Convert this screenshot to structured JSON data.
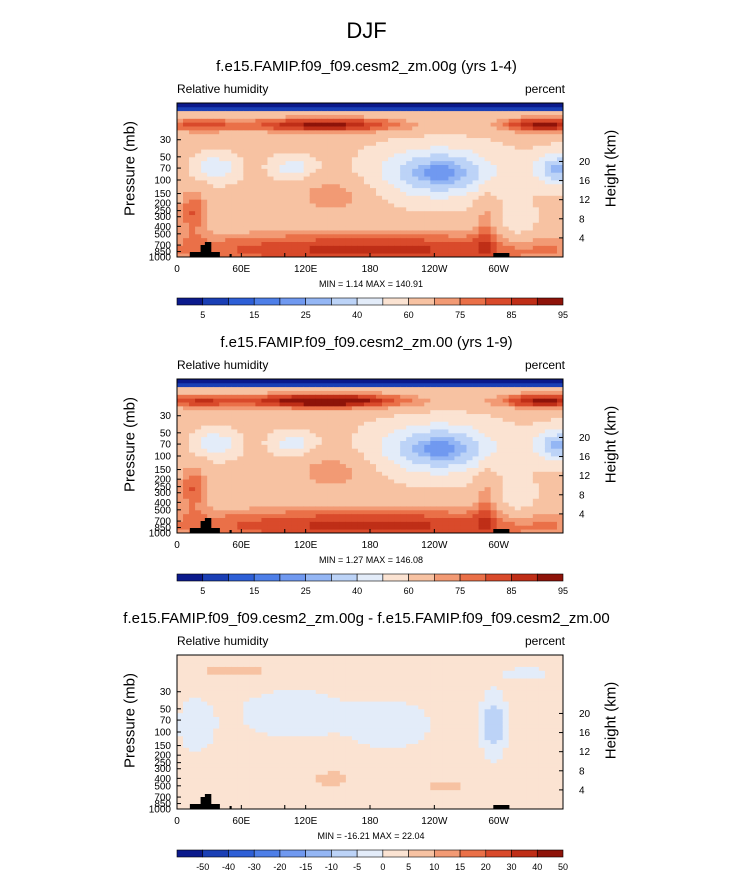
{
  "figure": {
    "title": "DJF"
  },
  "colors": {
    "rh_fills": [
      "#0b1a8c",
      "#1a3fb5",
      "#2e5fd6",
      "#4e7fe8",
      "#7099f0",
      "#94b6f4",
      "#bcd3f7",
      "#e3ecf9",
      "#fbe3d2",
      "#f7c2a2",
      "#f29a74",
      "#ea7048",
      "#d94a2b",
      "#bf2e17",
      "#8e1309"
    ],
    "diff_fills": [
      "#0b1a8c",
      "#1a3fb5",
      "#2e5fd6",
      "#4e7fe8",
      "#7099f0",
      "#94b6f4",
      "#bcd3f7",
      "#e3ecf9",
      "#fbe3d2",
      "#f7c2a2",
      "#f29a74",
      "#ea7048",
      "#d94a2b",
      "#bf2e17",
      "#8e1309"
    ],
    "terrain": "#000000"
  },
  "chart_data": [
    {
      "type": "heatmap",
      "title": "f.e15.FAMIP.f09_f09.cesm2_zm.00g (yrs 1-4)",
      "left_label": "Relative humidity",
      "right_label": "percent",
      "ylabel": "Pressure (mb)",
      "ylabel_right": "Height (km)",
      "minmax": "MIN =   1.14  MAX = 140.91",
      "x_ticks": [
        "0",
        "60E",
        "120E",
        "180",
        "120W",
        "60W"
      ],
      "y_ticks": [
        "1000",
        "850",
        "700",
        "500",
        "400",
        "300",
        "250",
        "200",
        "150",
        "100",
        "70",
        "50",
        "30"
      ],
      "height_ticks": [
        "4",
        "8",
        "12",
        "16",
        "20"
      ],
      "colorbar_labels": [
        "5",
        "15",
        "25",
        "40",
        "60",
        "75",
        "85",
        "95"
      ],
      "colorbar_levels": [
        5,
        10,
        15,
        20,
        25,
        30,
        40,
        50,
        60,
        70,
        75,
        80,
        85,
        90,
        95
      ]
    },
    {
      "type": "heatmap",
      "title": "f.e15.FAMIP.f09_f09.cesm2_zm.00 (yrs 1-9)",
      "left_label": "Relative humidity",
      "right_label": "percent",
      "ylabel": "Pressure (mb)",
      "ylabel_right": "Height (km)",
      "minmax": "MIN =   1.27  MAX = 146.08",
      "x_ticks": [
        "0",
        "60E",
        "120E",
        "180",
        "120W",
        "60W"
      ],
      "y_ticks": [
        "1000",
        "850",
        "700",
        "500",
        "400",
        "300",
        "250",
        "200",
        "150",
        "100",
        "70",
        "50",
        "30"
      ],
      "height_ticks": [
        "4",
        "8",
        "12",
        "16",
        "20"
      ],
      "colorbar_labels": [
        "5",
        "15",
        "25",
        "40",
        "60",
        "75",
        "85",
        "95"
      ],
      "colorbar_levels": [
        5,
        10,
        15,
        20,
        25,
        30,
        40,
        50,
        60,
        70,
        75,
        80,
        85,
        90,
        95
      ]
    },
    {
      "type": "heatmap",
      "title": "f.e15.FAMIP.f09_f09.cesm2_zm.00g - f.e15.FAMIP.f09_f09.cesm2_zm.00",
      "left_label": "Relative humidity",
      "right_label": "percent",
      "ylabel": "Pressure (mb)",
      "ylabel_right": "Height (km)",
      "minmax": "MIN = -16.21  MAX =  22.04",
      "x_ticks": [
        "0",
        "60E",
        "120E",
        "180",
        "120W",
        "60W"
      ],
      "y_ticks": [
        "1000",
        "850",
        "700",
        "500",
        "400",
        "300",
        "250",
        "200",
        "150",
        "100",
        "70",
        "50",
        "30"
      ],
      "height_ticks": [
        "4",
        "8",
        "12",
        "16",
        "20"
      ],
      "colorbar_labels": [
        "-50",
        "-40",
        "-30",
        "-20",
        "-15",
        "-10",
        "-5",
        "0",
        "5",
        "10",
        "15",
        "20",
        "30",
        "40",
        "50"
      ],
      "colorbar_levels": [
        -50,
        -40,
        -30,
        -20,
        -15,
        -10,
        -5,
        0,
        5,
        10,
        15,
        20,
        30,
        40,
        50
      ]
    }
  ]
}
